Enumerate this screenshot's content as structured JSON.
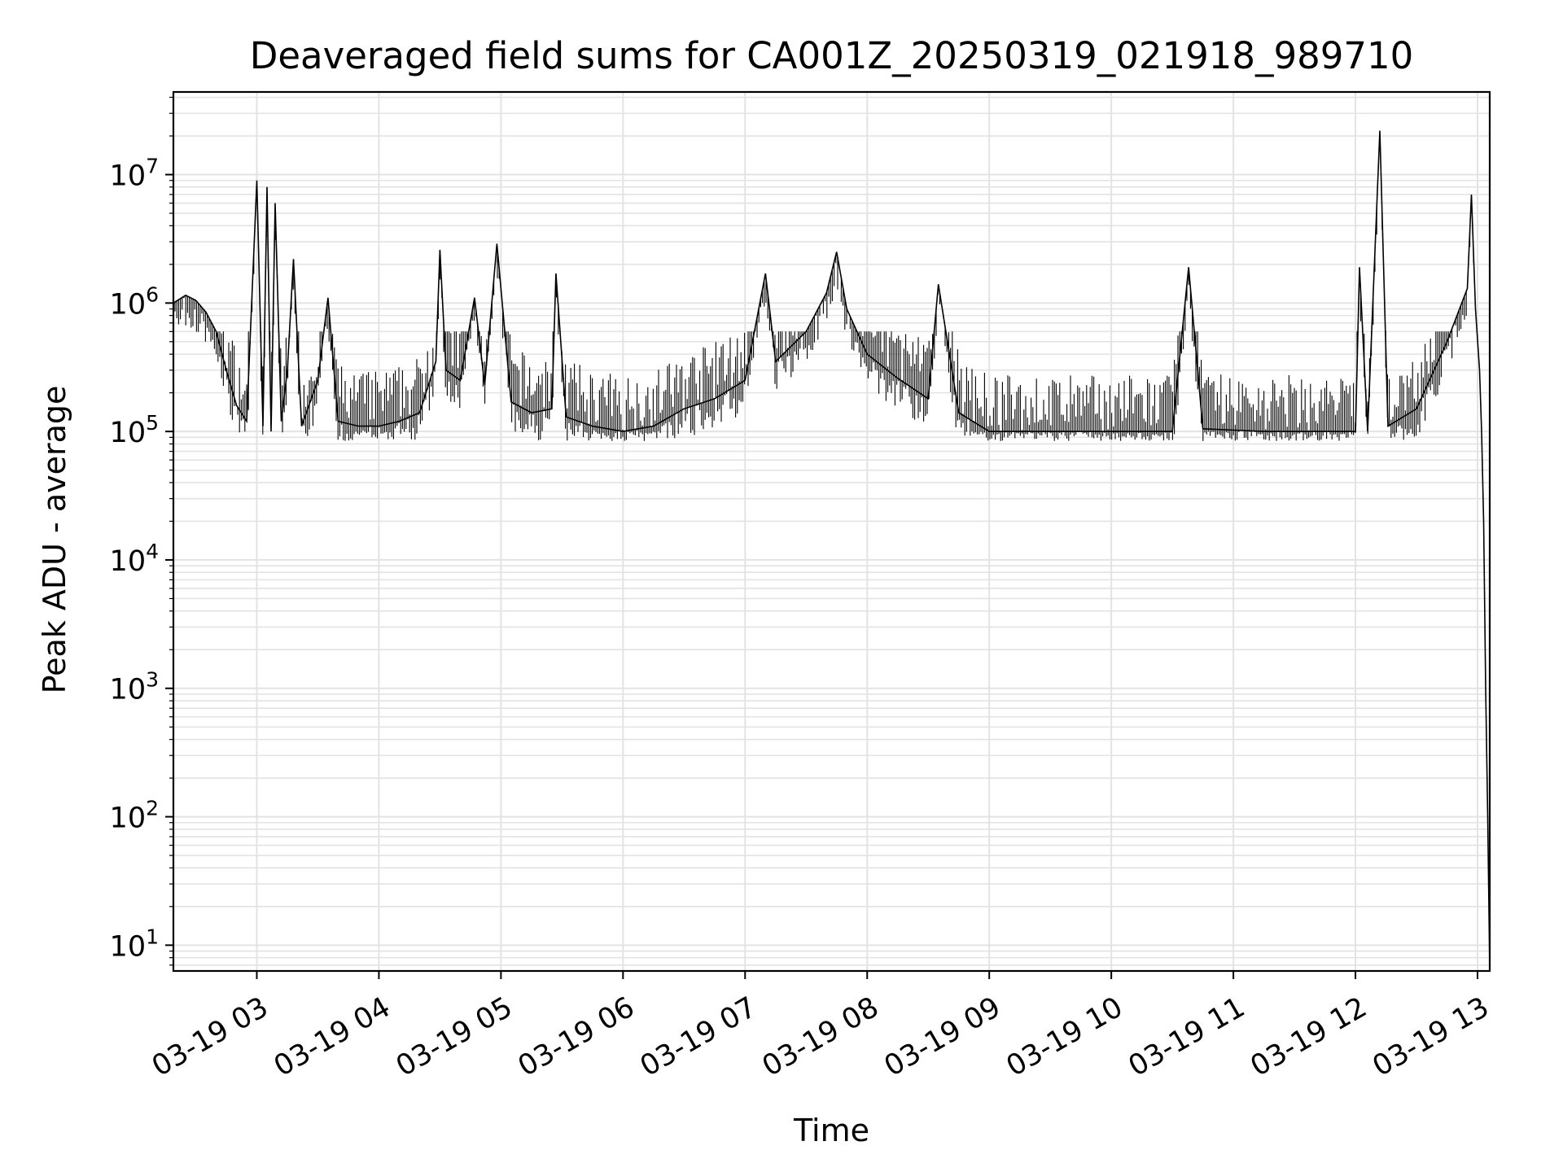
{
  "chart_data": {
    "type": "line",
    "title": "Deaveraged field sums for CA001Z_20250319_021918_989710",
    "xlabel": "Time",
    "ylabel": "Peak ADU - average",
    "x_scale": "time",
    "y_scale": "log",
    "xlim": [
      "2025-03-19 02:19",
      "2025-03-19 13:06"
    ],
    "ylim": [
      6.3,
      44000000
    ],
    "grid": true,
    "legend": "none",
    "x_ticks": [
      "03-19 03",
      "03-19 04",
      "03-19 05",
      "03-19 06",
      "03-19 07",
      "03-19 08",
      "03-19 09",
      "03-19 10",
      "03-19 11",
      "03-19 12",
      "03-19 13"
    ],
    "x_tick_times": [
      "2025-03-19 03:00",
      "2025-03-19 04:00",
      "2025-03-19 05:00",
      "2025-03-19 06:00",
      "2025-03-19 07:00",
      "2025-03-19 08:00",
      "2025-03-19 09:00",
      "2025-03-19 10:00",
      "2025-03-19 11:00",
      "2025-03-19 12:00",
      "2025-03-19 13:00"
    ],
    "y_ticks": [
      {
        "value": 10,
        "base": "10",
        "exp": "1"
      },
      {
        "value": 100,
        "base": "10",
        "exp": "2"
      },
      {
        "value": 1000,
        "base": "10",
        "exp": "3"
      },
      {
        "value": 10000,
        "base": "10",
        "exp": "4"
      },
      {
        "value": 100000,
        "base": "10",
        "exp": "5"
      },
      {
        "value": 1000000,
        "base": "10",
        "exp": "6"
      },
      {
        "value": 10000000,
        "base": "10",
        "exp": "7"
      }
    ],
    "series": [
      {
        "color": "#000000",
        "points": [
          [
            "2025-03-19 02:19",
            1000000
          ],
          [
            "2025-03-19 02:25",
            1150000
          ],
          [
            "2025-03-19 02:30",
            1050000
          ],
          [
            "2025-03-19 02:35",
            850000
          ],
          [
            "2025-03-19 02:40",
            600000
          ],
          [
            "2025-03-19 02:45",
            300000
          ],
          [
            "2025-03-19 02:50",
            160000
          ],
          [
            "2025-03-19 02:55",
            120000
          ],
          [
            "2025-03-19 03:00",
            9000000
          ],
          [
            "2025-03-19 03:03",
            110000
          ],
          [
            "2025-03-19 03:05",
            8000000
          ],
          [
            "2025-03-19 03:07",
            100000
          ],
          [
            "2025-03-19 03:09",
            6000000
          ],
          [
            "2025-03-19 03:12",
            120000
          ],
          [
            "2025-03-19 03:15",
            300000
          ],
          [
            "2025-03-19 03:18",
            2200000
          ],
          [
            "2025-03-19 03:22",
            110000
          ],
          [
            "2025-03-19 03:30",
            250000
          ],
          [
            "2025-03-19 03:35",
            1100000
          ],
          [
            "2025-03-19 03:40",
            120000
          ],
          [
            "2025-03-19 03:50",
            110000
          ],
          [
            "2025-03-19 04:00",
            110000
          ],
          [
            "2025-03-19 04:10",
            120000
          ],
          [
            "2025-03-19 04:20",
            140000
          ],
          [
            "2025-03-19 04:28",
            350000
          ],
          [
            "2025-03-19 04:30",
            2600000
          ],
          [
            "2025-03-19 04:33",
            300000
          ],
          [
            "2025-03-19 04:40",
            250000
          ],
          [
            "2025-03-19 04:47",
            1100000
          ],
          [
            "2025-03-19 04:52",
            230000
          ],
          [
            "2025-03-19 04:58",
            2900000
          ],
          [
            "2025-03-19 05:05",
            170000
          ],
          [
            "2025-03-19 05:15",
            140000
          ],
          [
            "2025-03-19 05:25",
            150000
          ],
          [
            "2025-03-19 05:27",
            1700000
          ],
          [
            "2025-03-19 05:32",
            130000
          ],
          [
            "2025-03-19 05:45",
            110000
          ],
          [
            "2025-03-19 06:00",
            100000
          ],
          [
            "2025-03-19 06:15",
            110000
          ],
          [
            "2025-03-19 06:30",
            150000
          ],
          [
            "2025-03-19 06:45",
            180000
          ],
          [
            "2025-03-19 07:00",
            250000
          ],
          [
            "2025-03-19 07:10",
            1700000
          ],
          [
            "2025-03-19 07:15",
            350000
          ],
          [
            "2025-03-19 07:30",
            600000
          ],
          [
            "2025-03-19 07:40",
            1200000
          ],
          [
            "2025-03-19 07:45",
            2500000
          ],
          [
            "2025-03-19 07:50",
            900000
          ],
          [
            "2025-03-19 08:00",
            400000
          ],
          [
            "2025-03-19 08:15",
            260000
          ],
          [
            "2025-03-19 08:30",
            180000
          ],
          [
            "2025-03-19 08:35",
            1400000
          ],
          [
            "2025-03-19 08:45",
            140000
          ],
          [
            "2025-03-19 09:00",
            100000
          ],
          [
            "2025-03-19 09:30",
            100000
          ],
          [
            "2025-03-19 10:00",
            100000
          ],
          [
            "2025-03-19 10:30",
            100000
          ],
          [
            "2025-03-19 10:38",
            1900000
          ],
          [
            "2025-03-19 10:45",
            105000
          ],
          [
            "2025-03-19 11:15",
            100000
          ],
          [
            "2025-03-19 11:45",
            100000
          ],
          [
            "2025-03-19 12:00",
            100000
          ],
          [
            "2025-03-19 12:02",
            1900000
          ],
          [
            "2025-03-19 12:06",
            100000
          ],
          [
            "2025-03-19 12:12",
            22000000
          ],
          [
            "2025-03-19 12:16",
            110000
          ],
          [
            "2025-03-19 12:30",
            150000
          ],
          [
            "2025-03-19 12:45",
            500000
          ],
          [
            "2025-03-19 12:55",
            1300000
          ],
          [
            "2025-03-19 12:57",
            7000000
          ],
          [
            "2025-03-19 12:59",
            900000
          ],
          [
            "2025-03-19 13:01",
            300000
          ],
          [
            "2025-03-19 13:02",
            100000
          ],
          [
            "2025-03-19 13:03",
            20000
          ],
          [
            "2025-03-19 13:04",
            1000
          ],
          [
            "2025-03-19 13:05",
            100
          ],
          [
            "2025-03-19 13:06",
            6.5
          ]
        ]
      }
    ]
  }
}
